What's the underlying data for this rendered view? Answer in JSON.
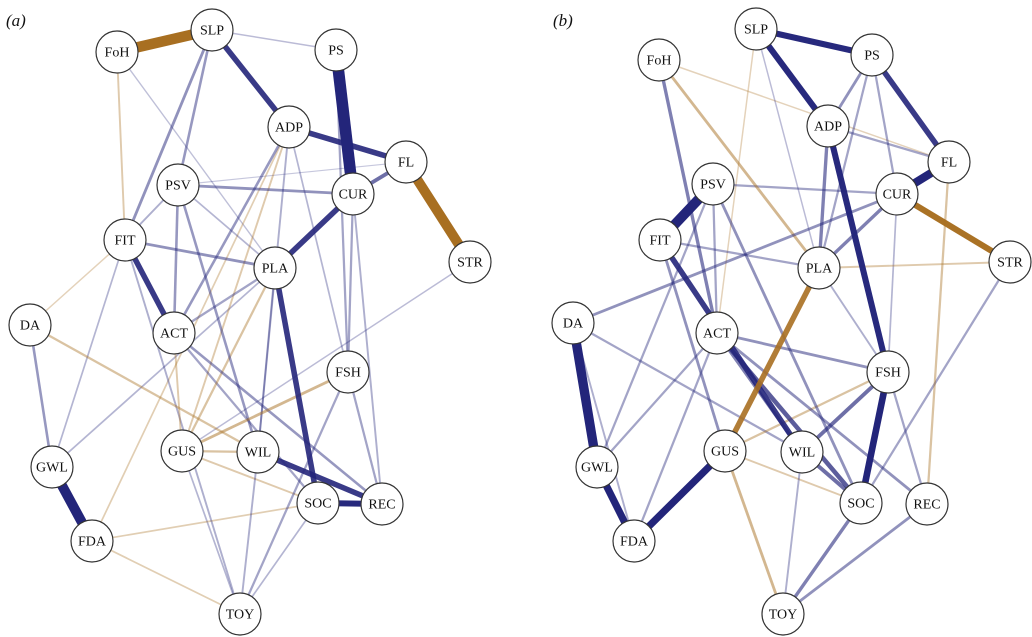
{
  "colors": {
    "positive": "#23257a",
    "negative": "#a86f21"
  },
  "panels": [
    {
      "id": "a",
      "label": "(a)",
      "nodes": [
        {
          "id": "SLP",
          "label": "SLP"
        },
        {
          "id": "FoH",
          "label": "FoH"
        },
        {
          "id": "PS",
          "label": "PS"
        },
        {
          "id": "ADP",
          "label": "ADP"
        },
        {
          "id": "FL",
          "label": "FL"
        },
        {
          "id": "PSV",
          "label": "PSV"
        },
        {
          "id": "CUR",
          "label": "CUR"
        },
        {
          "id": "FIT",
          "label": "FIT"
        },
        {
          "id": "STR",
          "label": "STR"
        },
        {
          "id": "PLA",
          "label": "PLA"
        },
        {
          "id": "DA",
          "label": "DA"
        },
        {
          "id": "ACT",
          "label": "ACT"
        },
        {
          "id": "FSH",
          "label": "FSH"
        },
        {
          "id": "GUS",
          "label": "GUS"
        },
        {
          "id": "WIL",
          "label": "WIL"
        },
        {
          "id": "GWL",
          "label": "GWL"
        },
        {
          "id": "SOC",
          "label": "SOC"
        },
        {
          "id": "REC",
          "label": "REC"
        },
        {
          "id": "FDA",
          "label": "FDA"
        },
        {
          "id": "TOY",
          "label": "TOY"
        }
      ],
      "edges": [
        {
          "s": "FoH",
          "t": "SLP",
          "w": -0.9
        },
        {
          "s": "PS",
          "t": "CUR",
          "w": 1.0
        },
        {
          "s": "FL",
          "t": "STR",
          "w": -0.85
        },
        {
          "s": "GWL",
          "t": "FDA",
          "w": 0.85
        },
        {
          "s": "SLP",
          "t": "ADP",
          "w": 0.45
        },
        {
          "s": "ADP",
          "t": "FL",
          "w": 0.45
        },
        {
          "s": "FIT",
          "t": "ACT",
          "w": 0.45
        },
        {
          "s": "PLA",
          "t": "SOC",
          "w": 0.45
        },
        {
          "s": "CUR",
          "t": "PLA",
          "w": 0.45
        },
        {
          "s": "WIL",
          "t": "REC",
          "w": 0.45
        },
        {
          "s": "SOC",
          "t": "REC",
          "w": 0.5
        },
        {
          "s": "CUR",
          "t": "FL",
          "w": 0.3
        },
        {
          "s": "SLP",
          "t": "FIT",
          "w": 0.2
        },
        {
          "s": "SLP",
          "t": "PSV",
          "w": 0.18
        },
        {
          "s": "SLP",
          "t": "PS",
          "w": 0.08
        },
        {
          "s": "ADP",
          "t": "ACT",
          "w": 0.18
        },
        {
          "s": "ADP",
          "t": "WIL",
          "w": 0.12
        },
        {
          "s": "ADP",
          "t": "GUS",
          "w": -0.12
        },
        {
          "s": "ADP",
          "t": "FDA",
          "w": -0.1
        },
        {
          "s": "PS",
          "t": "FSH",
          "w": 0.15
        },
        {
          "s": "PSV",
          "t": "CUR",
          "w": 0.2
        },
        {
          "s": "PSV",
          "t": "ACT",
          "w": 0.18
        },
        {
          "s": "PSV",
          "t": "WIL",
          "w": 0.18
        },
        {
          "s": "PSV",
          "t": "PLA",
          "w": 0.1
        },
        {
          "s": "FIT",
          "t": "PLA",
          "w": 0.2
        },
        {
          "s": "FIT",
          "t": "PSV",
          "w": 0.12
        },
        {
          "s": "FIT",
          "t": "TOY",
          "w": 0.12
        },
        {
          "s": "FIT",
          "t": "DA",
          "w": -0.08
        },
        {
          "s": "FoH",
          "t": "FIT",
          "w": -0.12
        },
        {
          "s": "FoH",
          "t": "PLA",
          "w": 0.07
        },
        {
          "s": "ACT",
          "t": "REC",
          "w": 0.18
        },
        {
          "s": "ACT",
          "t": "SOC",
          "w": 0.15
        },
        {
          "s": "ACT",
          "t": "GUS",
          "w": -0.12
        },
        {
          "s": "ACT",
          "t": "PLA",
          "w": 0.15
        },
        {
          "s": "PLA",
          "t": "GUS",
          "w": -0.15
        },
        {
          "s": "PLA",
          "t": "WIL",
          "w": 0.12
        },
        {
          "s": "CUR",
          "t": "FSH",
          "w": 0.15
        },
        {
          "s": "CUR",
          "t": "REC",
          "w": 0.12
        },
        {
          "s": "FSH",
          "t": "REC",
          "w": 0.15
        },
        {
          "s": "FSH",
          "t": "GUS",
          "w": -0.2
        },
        {
          "s": "FSH",
          "t": "TOY",
          "w": 0.15
        },
        {
          "s": "GUS",
          "t": "WIL",
          "w": -0.15
        },
        {
          "s": "GUS",
          "t": "SOC",
          "w": -0.12
        },
        {
          "s": "GUS",
          "t": "TOY",
          "w": 0.1
        },
        {
          "s": "DA",
          "t": "GWL",
          "w": 0.18
        },
        {
          "s": "DA",
          "t": "WIL",
          "w": -0.15
        },
        {
          "s": "GWL",
          "t": "PLA",
          "w": 0.1
        },
        {
          "s": "GWL",
          "t": "FIT",
          "w": 0.1
        },
        {
          "s": "FDA",
          "t": "TOY",
          "w": -0.1
        },
        {
          "s": "FDA",
          "t": "SOC",
          "w": -0.1
        },
        {
          "s": "STR",
          "t": "GUS",
          "w": 0.08
        },
        {
          "s": "FL",
          "t": "PSV",
          "w": 0.05
        },
        {
          "s": "WIL",
          "t": "TOY",
          "w": 0.12
        },
        {
          "s": "SOC",
          "t": "TOY",
          "w": 0.1
        },
        {
          "s": "ADP",
          "t": "FSH",
          "w": 0.1
        }
      ]
    },
    {
      "id": "b",
      "label": "(b)",
      "nodes": [
        {
          "id": "SLP",
          "label": "SLP"
        },
        {
          "id": "FoH",
          "label": "FoH"
        },
        {
          "id": "PS",
          "label": "PS"
        },
        {
          "id": "ADP",
          "label": "ADP"
        },
        {
          "id": "FL",
          "label": "FL"
        },
        {
          "id": "PSV",
          "label": "PSV"
        },
        {
          "id": "CUR",
          "label": "CUR"
        },
        {
          "id": "FIT",
          "label": "FIT"
        },
        {
          "id": "STR",
          "label": "STR"
        },
        {
          "id": "PLA",
          "label": "PLA"
        },
        {
          "id": "DA",
          "label": "DA"
        },
        {
          "id": "ACT",
          "label": "ACT"
        },
        {
          "id": "FSH",
          "label": "FSH"
        },
        {
          "id": "GUS",
          "label": "GUS"
        },
        {
          "id": "WIL",
          "label": "WIL"
        },
        {
          "id": "GWL",
          "label": "GWL"
        },
        {
          "id": "SOC",
          "label": "SOC"
        },
        {
          "id": "REC",
          "label": "REC"
        },
        {
          "id": "FDA",
          "label": "FDA"
        },
        {
          "id": "TOY",
          "label": "TOY"
        }
      ],
      "edges": [
        {
          "s": "SLP",
          "t": "PS",
          "w": 0.5
        },
        {
          "s": "SLP",
          "t": "ADP",
          "w": 0.5
        },
        {
          "s": "PS",
          "t": "FL",
          "w": 0.45
        },
        {
          "s": "CUR",
          "t": "FL",
          "w": 0.7
        },
        {
          "s": "CUR",
          "t": "STR",
          "w": -0.5
        },
        {
          "s": "FIT",
          "t": "PSV",
          "w": 0.85
        },
        {
          "s": "DA",
          "t": "GWL",
          "w": 0.8
        },
        {
          "s": "GWL",
          "t": "FDA",
          "w": 0.6
        },
        {
          "s": "FDA",
          "t": "GUS",
          "w": 0.6
        },
        {
          "s": "ADP",
          "t": "FSH",
          "w": 0.5
        },
        {
          "s": "FIT",
          "t": "WIL",
          "w": 0.45
        },
        {
          "s": "FSH",
          "t": "SOC",
          "w": 0.55
        },
        {
          "s": "PLA",
          "t": "GUS",
          "w": -0.45
        },
        {
          "s": "ACT",
          "t": "SOC",
          "w": 0.35
        },
        {
          "s": "WIL",
          "t": "SOC",
          "w": 0.3
        },
        {
          "s": "CUR",
          "t": "PLA",
          "w": 0.25
        },
        {
          "s": "PS",
          "t": "ADP",
          "w": 0.2
        },
        {
          "s": "PS",
          "t": "PLA",
          "w": 0.15
        },
        {
          "s": "PS",
          "t": "CUR",
          "w": 0.15
        },
        {
          "s": "ADP",
          "t": "PLA",
          "w": 0.25
        },
        {
          "s": "ADP",
          "t": "FL",
          "w": 0.15
        },
        {
          "s": "FoH",
          "t": "ACT",
          "w": 0.25
        },
        {
          "s": "FoH",
          "t": "PLA",
          "w": -0.2
        },
        {
          "s": "PSV",
          "t": "CUR",
          "w": 0.15
        },
        {
          "s": "PSV",
          "t": "SOC",
          "w": 0.2
        },
        {
          "s": "PSV",
          "t": "ACT",
          "w": 0.15
        },
        {
          "s": "FIT",
          "t": "PLA",
          "w": 0.15
        },
        {
          "s": "FIT",
          "t": "GUS",
          "w": 0.2
        },
        {
          "s": "DA",
          "t": "CUR",
          "w": 0.2
        },
        {
          "s": "DA",
          "t": "WIL",
          "w": 0.15
        },
        {
          "s": "ACT",
          "t": "FSH",
          "w": 0.2
        },
        {
          "s": "ACT",
          "t": "WIL",
          "w": 0.25
        },
        {
          "s": "ACT",
          "t": "REC",
          "w": 0.2
        },
        {
          "s": "ACT",
          "t": "GWL",
          "w": 0.15
        },
        {
          "s": "GUS",
          "t": "FSH",
          "w": -0.15
        },
        {
          "s": "GUS",
          "t": "TOY",
          "w": -0.2
        },
        {
          "s": "GUS",
          "t": "SOC",
          "w": -0.12
        },
        {
          "s": "WIL",
          "t": "FSH",
          "w": 0.3
        },
        {
          "s": "SOC",
          "t": "TOY",
          "w": 0.25
        },
        {
          "s": "REC",
          "t": "TOY",
          "w": 0.2
        },
        {
          "s": "REC",
          "t": "FSH",
          "w": 0.15
        },
        {
          "s": "STR",
          "t": "PLA",
          "w": -0.12
        },
        {
          "s": "STR",
          "t": "SOC",
          "w": 0.15
        },
        {
          "s": "FL",
          "t": "REC",
          "w": -0.15
        },
        {
          "s": "GWL",
          "t": "PSV",
          "w": 0.15
        },
        {
          "s": "FDA",
          "t": "ACT",
          "w": 0.15
        },
        {
          "s": "SLP",
          "t": "ACT",
          "w": -0.08
        },
        {
          "s": "FoH",
          "t": "FL",
          "w": -0.08
        },
        {
          "s": "SLP",
          "t": "PLA",
          "w": 0.08
        },
        {
          "s": "WIL",
          "t": "TOY",
          "w": 0.12
        },
        {
          "s": "PLA",
          "t": "FSH",
          "w": 0.12
        },
        {
          "s": "DA",
          "t": "FDA",
          "w": 0.12
        },
        {
          "s": "CUR",
          "t": "FSH",
          "w": 0.1
        }
      ]
    }
  ]
}
